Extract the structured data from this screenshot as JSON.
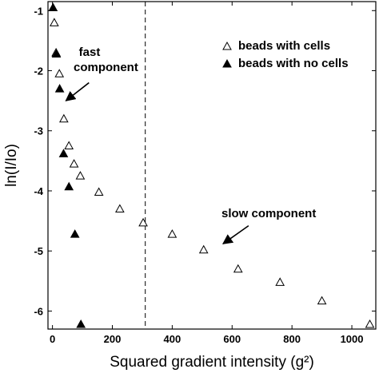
{
  "chart_data": {
    "type": "scatter",
    "xlabel": "Squared gradient intensity (g²)",
    "ylabel": "ln(I/Io)",
    "xlim": [
      -15,
      1080
    ],
    "ylim": [
      -6.3,
      -0.85
    ],
    "x_ticks": [
      0,
      200,
      400,
      600,
      800,
      1000
    ],
    "y_ticks": [
      -1,
      -2,
      -3,
      -4,
      -5,
      -6
    ],
    "x_tick_labels": [
      "0",
      "200",
      "400",
      "600",
      "800",
      "1000"
    ],
    "y_tick_labels": [
      "-1",
      "-2",
      "-3",
      "-4",
      "-5",
      "-6"
    ],
    "vertical_reference_line": {
      "x": 310,
      "style": "dashed"
    },
    "legend": {
      "placement": "top-right",
      "entries": [
        {
          "label": "beads with cells",
          "marker": "open-triangle"
        },
        {
          "label": "beads with no cells",
          "marker": "filled-triangle"
        }
      ]
    },
    "series": [
      {
        "name": "beads with cells",
        "marker": "open-triangle",
        "color": "#000000",
        "points": [
          {
            "x": 6,
            "y": -1.2
          },
          {
            "x": 12,
            "y": -1.7
          },
          {
            "x": 23,
            "y": -2.05
          },
          {
            "x": 38,
            "y": -2.8
          },
          {
            "x": 55,
            "y": -3.25
          },
          {
            "x": 72,
            "y": -3.55
          },
          {
            "x": 93,
            "y": -3.75
          },
          {
            "x": 155,
            "y": -4.02
          },
          {
            "x": 225,
            "y": -4.3
          },
          {
            "x": 303,
            "y": -4.53
          },
          {
            "x": 400,
            "y": -4.72
          },
          {
            "x": 505,
            "y": -4.98
          },
          {
            "x": 620,
            "y": -5.3
          },
          {
            "x": 760,
            "y": -5.52
          },
          {
            "x": 900,
            "y": -5.83
          },
          {
            "x": 1060,
            "y": -6.22
          }
        ]
      },
      {
        "name": "beads with no cells",
        "marker": "filled-triangle",
        "color": "#000000",
        "points": [
          {
            "x": 2,
            "y": -0.95
          },
          {
            "x": 13,
            "y": -1.72
          },
          {
            "x": 24,
            "y": -2.3
          },
          {
            "x": 37,
            "y": -3.38
          },
          {
            "x": 55,
            "y": -3.93
          },
          {
            "x": 75,
            "y": -4.72
          },
          {
            "x": 95,
            "y": -6.22
          }
        ]
      }
    ],
    "annotations": [
      {
        "text_lines": [
          "fast",
          "component"
        ],
        "arrow_from": {
          "x": 122,
          "y": -2.2
        },
        "arrow_to": {
          "x": 45,
          "y": -2.5
        }
      },
      {
        "text_lines": [
          "slow component"
        ],
        "arrow_from": {
          "x": 655,
          "y": -4.58
        },
        "arrow_to": {
          "x": 570,
          "y": -4.88
        }
      }
    ]
  }
}
